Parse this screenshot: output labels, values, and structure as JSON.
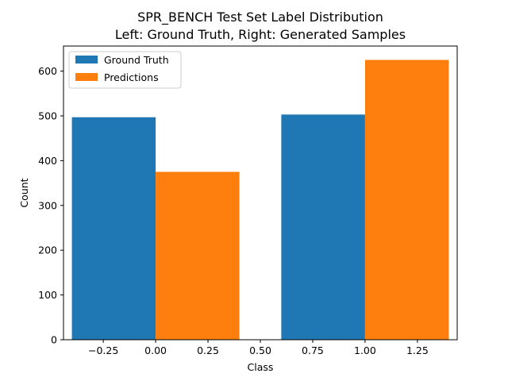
{
  "chart_data": {
    "type": "bar",
    "title": "SPR_BENCH Test Set Label Distribution",
    "subtitle": "Left: Ground Truth, Right: Generated Samples",
    "xlabel": "Class",
    "ylabel": "Count",
    "xlim": [
      -0.44,
      1.44
    ],
    "ylim": [
      0,
      656
    ],
    "xticks": [
      -0.25,
      0.0,
      0.25,
      0.5,
      0.75,
      1.0,
      1.25
    ],
    "xtick_labels": [
      "−0.25",
      "0.00",
      "0.25",
      "0.50",
      "0.75",
      "1.00",
      "1.25"
    ],
    "yticks": [
      0,
      100,
      200,
      300,
      400,
      500,
      600
    ],
    "ytick_labels": [
      "0",
      "100",
      "200",
      "300",
      "400",
      "500",
      "600"
    ],
    "bar_width": 0.4,
    "categories": [
      0,
      1
    ],
    "series": [
      {
        "name": "Ground Truth",
        "color": "#1f77b4",
        "offset": -0.2,
        "values": [
          497,
          503
        ]
      },
      {
        "name": "Predictions",
        "color": "#ff7f0e",
        "offset": 0.2,
        "values": [
          375,
          625
        ]
      }
    ],
    "legend": "upper-left",
    "grid": false
  }
}
